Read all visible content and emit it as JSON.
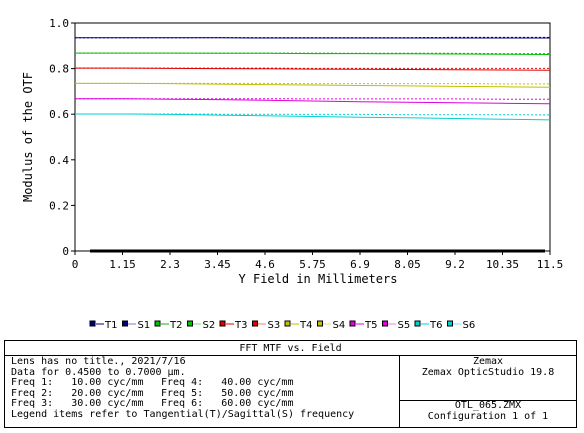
{
  "chart_data": {
    "type": "line",
    "title": "FFT MTF vs. Field",
    "xlabel": "Y Field in Millimeters",
    "ylabel": "Modulus of the OTF",
    "xlim": [
      0,
      11.5
    ],
    "ylim": [
      0,
      1.0
    ],
    "x_ticks": [
      "0",
      "1.15",
      "2.3",
      "3.45",
      "4.6",
      "5.75",
      "6.9",
      "8.05",
      "9.2",
      "10.35",
      "11.5"
    ],
    "y_ticks": [
      "0",
      "0.2",
      "0.4",
      "0.6",
      "0.8",
      "1.0"
    ],
    "grid": false,
    "legend_position": "bottom",
    "x": [
      0,
      1.15,
      2.3,
      3.45,
      4.6,
      5.75,
      6.9,
      8.05,
      9.2,
      10.35,
      11.5
    ],
    "series": [
      {
        "name": "T1",
        "color": "#000080",
        "style": "solid",
        "values": [
          0.935,
          0.935,
          0.935,
          0.935,
          0.934,
          0.934,
          0.934,
          0.934,
          0.934,
          0.934,
          0.934
        ]
      },
      {
        "name": "S1",
        "color": "#000080",
        "style": "dotted",
        "values": [
          0.935,
          0.935,
          0.935,
          0.936,
          0.936,
          0.936,
          0.936,
          0.936,
          0.937,
          0.937,
          0.937
        ]
      },
      {
        "name": "T2",
        "color": "#00c000",
        "style": "solid",
        "values": [
          0.868,
          0.868,
          0.868,
          0.867,
          0.867,
          0.866,
          0.866,
          0.865,
          0.864,
          0.863,
          0.862
        ]
      },
      {
        "name": "S2",
        "color": "#00c000",
        "style": "dotted",
        "values": [
          0.868,
          0.868,
          0.868,
          0.868,
          0.868,
          0.868,
          0.867,
          0.867,
          0.867,
          0.866,
          0.866
        ]
      },
      {
        "name": "T3",
        "color": "#e00000",
        "style": "solid",
        "values": [
          0.802,
          0.802,
          0.801,
          0.8,
          0.799,
          0.798,
          0.797,
          0.796,
          0.795,
          0.794,
          0.793
        ]
      },
      {
        "name": "S3",
        "color": "#e00000",
        "style": "dotted",
        "values": [
          0.802,
          0.802,
          0.802,
          0.802,
          0.802,
          0.801,
          0.801,
          0.801,
          0.801,
          0.801,
          0.801
        ]
      },
      {
        "name": "T4",
        "color": "#c0c000",
        "style": "solid",
        "values": [
          0.735,
          0.735,
          0.734,
          0.732,
          0.73,
          0.728,
          0.726,
          0.724,
          0.722,
          0.72,
          0.718
        ]
      },
      {
        "name": "S4",
        "color": "#c0c000",
        "style": "dotted",
        "values": [
          0.735,
          0.735,
          0.735,
          0.735,
          0.735,
          0.734,
          0.734,
          0.734,
          0.734,
          0.733,
          0.733
        ]
      },
      {
        "name": "T5",
        "color": "#e000e0",
        "style": "solid",
        "values": [
          0.668,
          0.668,
          0.666,
          0.664,
          0.661,
          0.658,
          0.655,
          0.652,
          0.65,
          0.648,
          0.646
        ]
      },
      {
        "name": "S5",
        "color": "#e000e0",
        "style": "dotted",
        "values": [
          0.668,
          0.668,
          0.668,
          0.668,
          0.668,
          0.667,
          0.667,
          0.667,
          0.667,
          0.666,
          0.666
        ]
      },
      {
        "name": "T6",
        "color": "#00d0d0",
        "style": "solid",
        "values": [
          0.601,
          0.601,
          0.599,
          0.596,
          0.593,
          0.59,
          0.587,
          0.584,
          0.581,
          0.578,
          0.575
        ]
      },
      {
        "name": "S6",
        "color": "#00d0d0",
        "style": "dotted",
        "values": [
          0.601,
          0.601,
          0.601,
          0.6,
          0.6,
          0.599,
          0.599,
          0.598,
          0.598,
          0.598,
          0.597
        ]
      }
    ]
  },
  "footer": {
    "title": "FFT MTF vs. Field",
    "lens_line": "Lens has no title., 2021/7/16",
    "data_line": "Data for 0.4500 to 0.7000 µm.",
    "freqs": [
      {
        "label": "Freq 1:",
        "value": "10.00 cyc/mm"
      },
      {
        "label": "Freq 2:",
        "value": "20.00 cyc/mm"
      },
      {
        "label": "Freq 3:",
        "value": "30.00 cyc/mm"
      },
      {
        "label": "Freq 4:",
        "value": "40.00 cyc/mm"
      },
      {
        "label": "Freq 5:",
        "value": "50.00 cyc/mm"
      },
      {
        "label": "Freq 6:",
        "value": "60.00 cyc/mm"
      }
    ],
    "legend_note": "Legend items refer to Tangential(T)/Sagittal(S) frequency",
    "company": "Zemax",
    "product": "Zemax OpticStudio 19.8",
    "file": "OTL_065.ZMX",
    "config": "Configuration 1 of 1"
  }
}
